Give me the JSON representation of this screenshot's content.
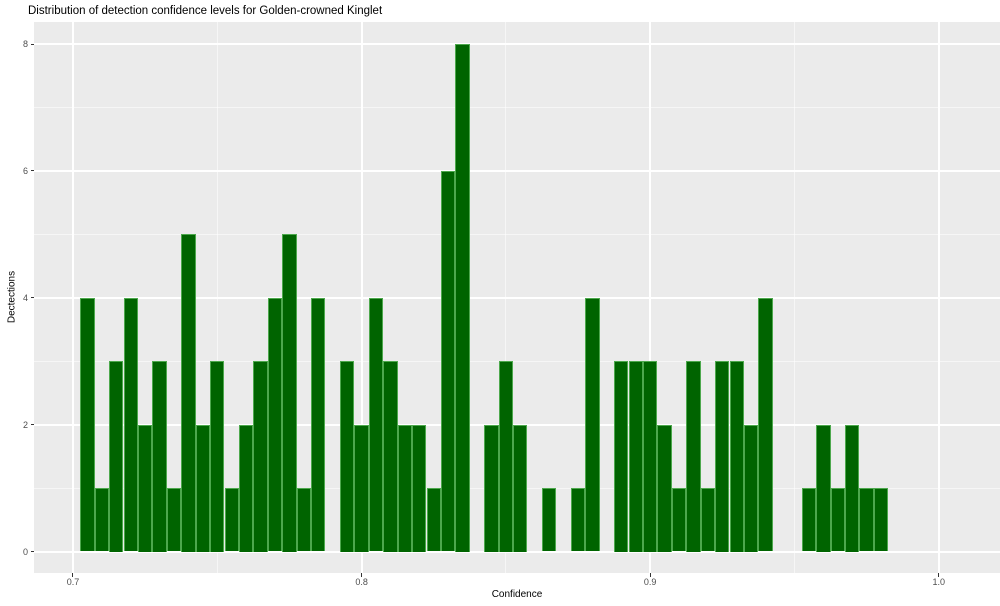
{
  "title": "Distribution of detection confidence levels for Golden-crowned Kinglet",
  "colors": {
    "bar_fill": "#006400",
    "bar_border": "#4DA84D",
    "panel_background": "#EBEBEB",
    "grid_major": "#FFFFFF",
    "tick_label_text": "#4D4D4D",
    "title_text": "#000000"
  },
  "chart_data": {
    "type": "bar",
    "subtype": "histogram",
    "title": "Distribution of detection confidence levels for Golden-crowned Kinglet",
    "xlabel": "Confidence",
    "ylabel": "Dectections",
    "binwidth": 0.005,
    "bin_centers": [
      0.705,
      0.71,
      0.715,
      0.72,
      0.725,
      0.73,
      0.735,
      0.74,
      0.745,
      0.75,
      0.755,
      0.76,
      0.765,
      0.77,
      0.775,
      0.78,
      0.785,
      0.79,
      0.795,
      0.8,
      0.805,
      0.81,
      0.815,
      0.82,
      0.825,
      0.83,
      0.835,
      0.84,
      0.845,
      0.85,
      0.855,
      0.86,
      0.865,
      0.87,
      0.875,
      0.88,
      0.885,
      0.89,
      0.895,
      0.9,
      0.905,
      0.91,
      0.915,
      0.92,
      0.925,
      0.93,
      0.935,
      0.94,
      0.945,
      0.95,
      0.955,
      0.96,
      0.965,
      0.97,
      0.975,
      0.98
    ],
    "counts": [
      4,
      1,
      3,
      4,
      2,
      3,
      1,
      5,
      2,
      3,
      1,
      2,
      3,
      4,
      5,
      1,
      4,
      0,
      3,
      2,
      4,
      3,
      2,
      2,
      1,
      6,
      8,
      0,
      2,
      3,
      2,
      0,
      1,
      0,
      1,
      4,
      0,
      3,
      3,
      3,
      2,
      1,
      3,
      1,
      3,
      3,
      2,
      4,
      0,
      0,
      1,
      2,
      1,
      2,
      1,
      1
    ],
    "x_ticks": [
      0.7,
      0.8,
      0.9,
      1.0
    ],
    "x_tick_labels": [
      "0.7",
      "0.8",
      "0.9",
      "1.0"
    ],
    "x_minor_ticks": [
      0.75,
      0.85,
      0.95
    ],
    "y_ticks": [
      0,
      2,
      4,
      6,
      8
    ],
    "y_tick_labels": [
      "0",
      "2",
      "4",
      "6",
      "8"
    ],
    "y_minor_ticks": [
      1,
      3,
      5,
      7
    ],
    "xlim": [
      0.6865,
      1.0212
    ],
    "ylim": [
      -0.338,
      8.348
    ],
    "grid": true,
    "legend": false
  }
}
